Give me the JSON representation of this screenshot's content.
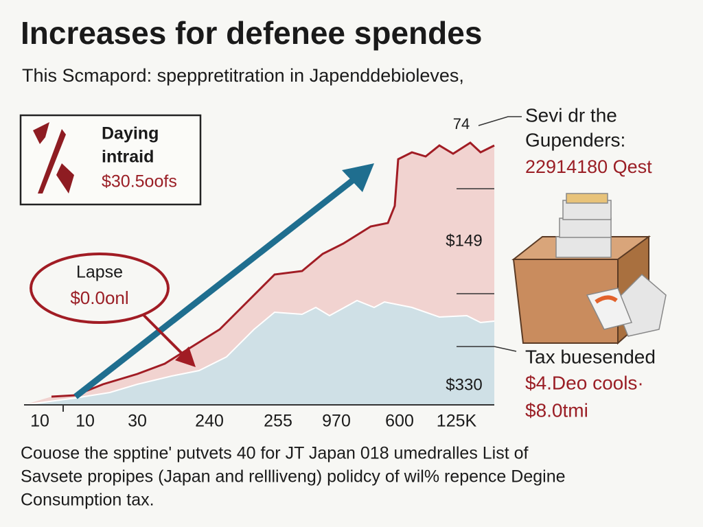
{
  "header": {
    "title": "Increases for defenee spendes",
    "subtitle": "This Scmapord: speppretitration in Japenddebioleves,"
  },
  "callout_box": {
    "lines": [
      "Daying",
      "intraid",
      "$30.5oofs"
    ]
  },
  "oval_callout": {
    "lines": [
      "Lapse",
      "$0.0onl"
    ]
  },
  "axis_labels": {
    "right": [
      "74",
      "$149",
      "$330"
    ],
    "bottom": [
      "10",
      "10",
      "30",
      "240",
      "255",
      "970",
      "600",
      "125K"
    ]
  },
  "top_note": {
    "lines": [
      "Sevi dr the",
      "Gupenders:",
      "22914180 Qest"
    ]
  },
  "bottom_note": {
    "lines": [
      "Tax buesended",
      "$4.Deo cools·",
      "$8.0tmi"
    ]
  },
  "footer": {
    "lines": [
      "Couose the spptine' putvets 40 for JT Japan 018 umedralles List of",
      "Savsete propipes (Japan and rellliveng) polidcy of wil% repence  Degine",
      "Consumption tax."
    ]
  }
}
